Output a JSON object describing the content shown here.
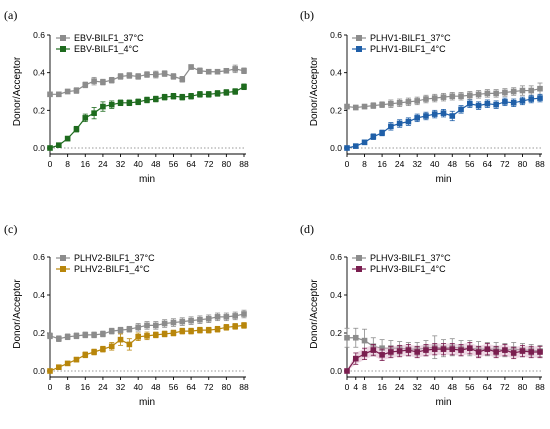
{
  "colors": {
    "gray": "#8c8c8c",
    "a_cold": "#1e6b1e",
    "b_cold": "#1f5fa8",
    "c_cold": "#b8860b",
    "d_cold": "#7a1e4f",
    "d_band": "#d9a8c4"
  },
  "chart_data": [
    {
      "type": "line",
      "panel_label": "(a)",
      "xlabel": "min",
      "ylabel": "Donor/Acceptor",
      "xlim": [
        0,
        88
      ],
      "ylim": [
        0,
        0.6
      ],
      "xticks": [
        "0",
        "8",
        "16",
        "24",
        "32",
        "40",
        "48",
        "56",
        "64",
        "72",
        "80",
        "88"
      ],
      "yticks": [
        "0.0",
        "0.2",
        "0.4",
        "0.6"
      ],
      "grid": false,
      "legend_position": "top-left",
      "x": [
        0,
        4,
        8,
        12,
        16,
        20,
        24,
        28,
        32,
        36,
        40,
        44,
        48,
        52,
        56,
        60,
        64,
        68,
        72,
        76,
        80,
        84,
        88
      ],
      "series": [
        {
          "name": "EBV-BILF1_37°C",
          "color_key": "gray",
          "values": [
            0.285,
            0.285,
            0.3,
            0.305,
            0.335,
            0.355,
            0.35,
            0.36,
            0.38,
            0.385,
            0.38,
            0.39,
            0.39,
            0.395,
            0.38,
            0.365,
            0.43,
            0.41,
            0.405,
            0.405,
            0.41,
            0.42,
            0.41
          ],
          "error": [
            0.01,
            0.012,
            0.012,
            0.015,
            0.015,
            0.02,
            0.015,
            0.015,
            0.015,
            0.015,
            0.015,
            0.015,
            0.018,
            0.015,
            0.015,
            0.015,
            0.012,
            0.015,
            0.012,
            0.012,
            0.012,
            0.02,
            0.015
          ]
        },
        {
          "name": "EBV-BILF1_4°C",
          "color_key": "a_cold",
          "values": [
            0.0,
            0.015,
            0.05,
            0.1,
            0.16,
            0.185,
            0.22,
            0.23,
            0.24,
            0.24,
            0.245,
            0.255,
            0.26,
            0.27,
            0.275,
            0.27,
            0.275,
            0.285,
            0.285,
            0.29,
            0.295,
            0.3,
            0.325
          ],
          "error": [
            0.005,
            0.008,
            0.012,
            0.015,
            0.02,
            0.03,
            0.025,
            0.02,
            0.015,
            0.015,
            0.015,
            0.015,
            0.015,
            0.015,
            0.015,
            0.015,
            0.015,
            0.015,
            0.015,
            0.015,
            0.015,
            0.015,
            0.015
          ]
        }
      ]
    },
    {
      "type": "line",
      "panel_label": "(b)",
      "xlabel": "min",
      "ylabel": "Donor/Acceptor",
      "xlim": [
        0,
        88
      ],
      "ylim": [
        0,
        0.6
      ],
      "xticks": [
        "0",
        "8",
        "16",
        "24",
        "32",
        "40",
        "48",
        "56",
        "64",
        "72",
        "80",
        "88"
      ],
      "yticks": [
        "0.0",
        "0.2",
        "0.4",
        "0.6"
      ],
      "grid": false,
      "legend_position": "top-left",
      "x": [
        0,
        4,
        8,
        12,
        16,
        20,
        24,
        28,
        32,
        36,
        40,
        44,
        48,
        52,
        56,
        60,
        64,
        68,
        72,
        76,
        80,
        84,
        88
      ],
      "series": [
        {
          "name": "PLHV1-BILF1_37°C",
          "color_key": "gray",
          "values": [
            0.22,
            0.215,
            0.22,
            0.225,
            0.23,
            0.235,
            0.24,
            0.245,
            0.25,
            0.26,
            0.265,
            0.27,
            0.275,
            0.275,
            0.28,
            0.285,
            0.29,
            0.29,
            0.295,
            0.3,
            0.305,
            0.305,
            0.315
          ],
          "error": [
            0.012,
            0.012,
            0.012,
            0.015,
            0.015,
            0.02,
            0.02,
            0.02,
            0.02,
            0.02,
            0.02,
            0.02,
            0.02,
            0.02,
            0.02,
            0.02,
            0.02,
            0.02,
            0.02,
            0.02,
            0.025,
            0.025,
            0.03
          ]
        },
        {
          "name": "PLHV1-BILF1_4°C",
          "color_key": "b_cold",
          "values": [
            0.0,
            0.01,
            0.03,
            0.06,
            0.08,
            0.115,
            0.13,
            0.14,
            0.16,
            0.17,
            0.18,
            0.185,
            0.17,
            0.205,
            0.235,
            0.225,
            0.235,
            0.23,
            0.245,
            0.24,
            0.25,
            0.26,
            0.265
          ],
          "error": [
            0.005,
            0.008,
            0.012,
            0.015,
            0.015,
            0.02,
            0.02,
            0.02,
            0.02,
            0.02,
            0.02,
            0.02,
            0.025,
            0.02,
            0.02,
            0.02,
            0.02,
            0.02,
            0.02,
            0.02,
            0.02,
            0.02,
            0.02
          ]
        }
      ]
    },
    {
      "type": "line",
      "panel_label": "(c)",
      "xlabel": "min",
      "ylabel": "Donor/Acceptor",
      "xlim": [
        0,
        88
      ],
      "ylim": [
        0,
        0.6
      ],
      "xticks": [
        "0",
        "8",
        "16",
        "24",
        "32",
        "40",
        "48",
        "56",
        "64",
        "72",
        "80",
        "88"
      ],
      "yticks": [
        "0.0",
        "0.2",
        "0.4",
        "0.6"
      ],
      "grid": false,
      "legend_position": "top-left",
      "x": [
        0,
        4,
        8,
        12,
        16,
        20,
        24,
        28,
        32,
        36,
        40,
        44,
        48,
        52,
        56,
        60,
        64,
        68,
        72,
        76,
        80,
        84,
        88
      ],
      "series": [
        {
          "name": "PLHV2-BILF1_37°C",
          "color_key": "gray",
          "values": [
            0.185,
            0.17,
            0.18,
            0.185,
            0.19,
            0.19,
            0.195,
            0.21,
            0.215,
            0.22,
            0.23,
            0.24,
            0.24,
            0.25,
            0.255,
            0.26,
            0.265,
            0.27,
            0.275,
            0.285,
            0.285,
            0.29,
            0.3
          ],
          "error": [
            0.015,
            0.015,
            0.015,
            0.015,
            0.015,
            0.015,
            0.015,
            0.015,
            0.015,
            0.015,
            0.02,
            0.02,
            0.02,
            0.02,
            0.02,
            0.02,
            0.02,
            0.02,
            0.02,
            0.02,
            0.02,
            0.02,
            0.02
          ]
        },
        {
          "name": "PLHV2-BILF1_4°C",
          "color_key": "c_cold",
          "values": [
            0.0,
            0.02,
            0.04,
            0.06,
            0.085,
            0.1,
            0.115,
            0.13,
            0.165,
            0.14,
            0.18,
            0.185,
            0.19,
            0.195,
            0.2,
            0.21,
            0.21,
            0.215,
            0.215,
            0.22,
            0.23,
            0.235,
            0.24
          ],
          "error": [
            0.005,
            0.008,
            0.01,
            0.012,
            0.015,
            0.015,
            0.015,
            0.02,
            0.03,
            0.03,
            0.02,
            0.02,
            0.015,
            0.015,
            0.015,
            0.015,
            0.015,
            0.015,
            0.015,
            0.015,
            0.015,
            0.015,
            0.015
          ]
        }
      ]
    },
    {
      "type": "line",
      "panel_label": "(d)",
      "xlabel": "min",
      "ylabel": "Donor/Acceptor",
      "xlim": [
        0,
        88
      ],
      "ylim": [
        0,
        0.6
      ],
      "xticks": [
        "0",
        "4",
        "8",
        "16",
        "24",
        "32",
        "40",
        "48",
        "56",
        "64",
        "72",
        "80",
        "88"
      ],
      "yticks": [
        "0.0",
        "0.2",
        "0.4",
        "0.6"
      ],
      "grid": false,
      "legend_position": "top-left",
      "x": [
        0,
        4,
        8,
        12,
        16,
        20,
        24,
        28,
        32,
        36,
        40,
        44,
        48,
        52,
        56,
        60,
        64,
        68,
        72,
        76,
        80,
        84,
        88
      ],
      "series": [
        {
          "name": "PLHV3-BILF1_37°C",
          "color_key": "gray",
          "values": [
            0.175,
            0.175,
            0.16,
            0.13,
            0.12,
            0.12,
            0.12,
            0.115,
            0.115,
            0.12,
            0.125,
            0.12,
            0.125,
            0.12,
            0.12,
            0.115,
            0.115,
            0.115,
            0.11,
            0.115,
            0.11,
            0.11,
            0.105
          ],
          "error": [
            0.05,
            0.05,
            0.06,
            0.045,
            0.045,
            0.04,
            0.035,
            0.035,
            0.035,
            0.04,
            0.06,
            0.045,
            0.045,
            0.04,
            0.04,
            0.04,
            0.035,
            0.035,
            0.035,
            0.035,
            0.035,
            0.03,
            0.03
          ]
        },
        {
          "name": "PLHV3-BILF1_4°C",
          "color_key": "d_cold",
          "values": [
            0.0,
            0.065,
            0.09,
            0.11,
            0.085,
            0.1,
            0.105,
            0.11,
            0.1,
            0.11,
            0.115,
            0.115,
            0.115,
            0.11,
            0.12,
            0.1,
            0.115,
            0.1,
            0.11,
            0.095,
            0.105,
            0.1,
            0.1
          ],
          "error": [
            0.005,
            0.03,
            0.03,
            0.03,
            0.03,
            0.03,
            0.03,
            0.03,
            0.03,
            0.03,
            0.03,
            0.03,
            0.03,
            0.03,
            0.03,
            0.03,
            0.03,
            0.03,
            0.03,
            0.03,
            0.03,
            0.03,
            0.03
          ]
        }
      ]
    }
  ]
}
